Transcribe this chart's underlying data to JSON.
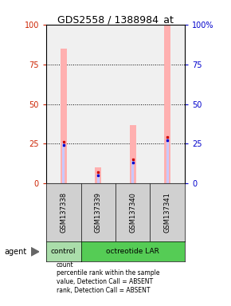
{
  "title": "GDS2558 / 1388984_at",
  "samples": [
    "GSM137338",
    "GSM137339",
    "GSM137340",
    "GSM137341"
  ],
  "groups": [
    "control",
    "octreotide LAR",
    "octreotide LAR",
    "octreotide LAR"
  ],
  "value_bars": [
    85,
    10,
    37,
    100
  ],
  "rank_bars": [
    26,
    7,
    15,
    29
  ],
  "left_yticks": [
    0,
    25,
    50,
    75,
    100
  ],
  "right_ytick_labels": [
    "0",
    "25",
    "50",
    "75",
    "100%"
  ],
  "left_tick_color": "#cc2200",
  "right_tick_color": "#0000cc",
  "title_fontsize": 9,
  "legend_items": [
    {
      "color": "#cc0000",
      "label": "count"
    },
    {
      "color": "#0000cc",
      "label": "percentile rank within the sample"
    },
    {
      "color": "#ffb0b0",
      "label": "value, Detection Call = ABSENT"
    },
    {
      "color": "#c8c8ff",
      "label": "rank, Detection Call = ABSENT"
    }
  ],
  "bar_color_value": "#ffb0b0",
  "bar_color_rank": "#c8c8ff",
  "marker_color_value": "#cc0000",
  "marker_color_rank": "#0000cc",
  "group_boxes": [
    {
      "label": "control",
      "start": 0,
      "end": 1,
      "color": "#aaddaa"
    },
    {
      "label": "octreotide LAR",
      "start": 1,
      "end": 4,
      "color": "#55cc55"
    }
  ],
  "plot_bg": "#f0f0f0",
  "background_color": "#ffffff"
}
